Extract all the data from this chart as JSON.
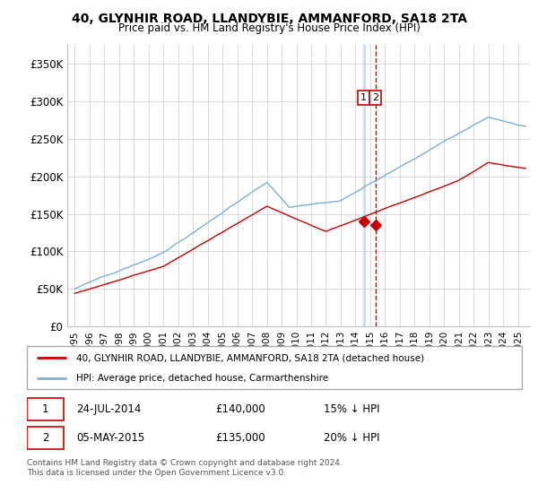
{
  "title_line1": "40, GLYNHIR ROAD, LLANDYBIE, AMMANFORD, SA18 2TA",
  "title_line2": "Price paid vs. HM Land Registry's House Price Index (HPI)",
  "ylim": [
    0,
    375000
  ],
  "yticks": [
    0,
    50000,
    100000,
    150000,
    200000,
    250000,
    300000,
    350000
  ],
  "ytick_labels": [
    "£0",
    "£50K",
    "£100K",
    "£150K",
    "£200K",
    "£250K",
    "£300K",
    "£350K"
  ],
  "legend_line1": "40, GLYNHIR ROAD, LLANDYBIE, AMMANFORD, SA18 2TA (detached house)",
  "legend_line2": "HPI: Average price, detached house, Carmarthenshire",
  "annotation1_date": "24-JUL-2014",
  "annotation1_price": "£140,000",
  "annotation1_hpi": "15% ↓ HPI",
  "annotation2_date": "05-MAY-2015",
  "annotation2_price": "£135,000",
  "annotation2_hpi": "20% ↓ HPI",
  "footnote": "Contains HM Land Registry data © Crown copyright and database right 2024.\nThis data is licensed under the Open Government Licence v3.0.",
  "hpi_color": "#7bafd4",
  "price_color": "#cc0000",
  "grid_color": "#cccccc",
  "background_color": "#ffffff",
  "sale1_year": 2014.56,
  "sale1_price": 140000,
  "sale2_year": 2015.34,
  "sale2_price": 135000,
  "xlim_left": 1994.5,
  "xlim_right": 2025.8
}
